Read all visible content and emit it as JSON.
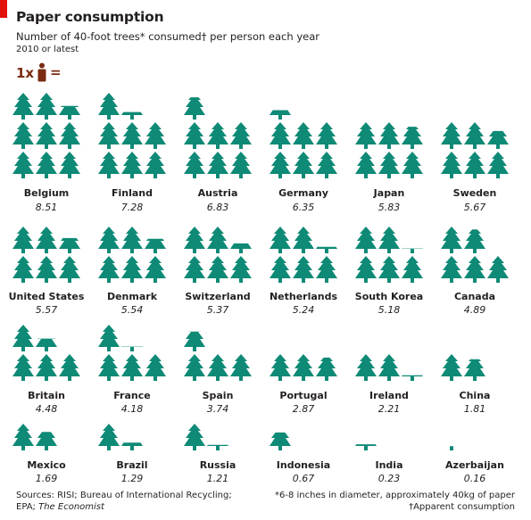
{
  "title": "Paper consumption",
  "subtitle": "Number of 40-foot trees* consumed† per person each year",
  "note": "2010 or latest",
  "key": {
    "multiplier": "1x",
    "equals": "=",
    "icon": "person-icon"
  },
  "colors": {
    "tree": "#0e8a76",
    "key": "#7a2b12",
    "accent": "#e3120b"
  },
  "chart_data": {
    "type": "pictogram",
    "unit": "trees per person",
    "series": [
      {
        "name": "Belgium",
        "value": 8.51,
        "label": "8.51"
      },
      {
        "name": "Finland",
        "value": 7.28,
        "label": "7.28"
      },
      {
        "name": "Austria",
        "value": 6.83,
        "label": "6.83"
      },
      {
        "name": "Germany",
        "value": 6.35,
        "label": "6.35"
      },
      {
        "name": "Japan",
        "value": 5.83,
        "label": "5.83"
      },
      {
        "name": "Sweden",
        "value": 5.67,
        "label": "5.67"
      },
      {
        "name": "United States",
        "value": 5.57,
        "label": "5.57"
      },
      {
        "name": "Denmark",
        "value": 5.54,
        "label": "5.54"
      },
      {
        "name": "Switzerland",
        "value": 5.37,
        "label": "5.37"
      },
      {
        "name": "Netherlands",
        "value": 5.24,
        "label": "5.24"
      },
      {
        "name": "South Korea",
        "value": 5.18,
        "label": "5.18"
      },
      {
        "name": "Canada",
        "value": 4.89,
        "label": "4.89"
      },
      {
        "name": "Britain",
        "value": 4.48,
        "label": "4.48"
      },
      {
        "name": "France",
        "value": 4.18,
        "label": "4.18"
      },
      {
        "name": "Spain",
        "value": 3.74,
        "label": "3.74"
      },
      {
        "name": "Portugal",
        "value": 2.87,
        "label": "2.87"
      },
      {
        "name": "Ireland",
        "value": 2.21,
        "label": "2.21"
      },
      {
        "name": "China",
        "value": 1.81,
        "label": "1.81"
      },
      {
        "name": "Mexico",
        "value": 1.69,
        "label": "1.69"
      },
      {
        "name": "Brazil",
        "value": 1.29,
        "label": "1.29"
      },
      {
        "name": "Russia",
        "value": 1.21,
        "label": "1.21"
      },
      {
        "name": "Indonesia",
        "value": 0.67,
        "label": "0.67"
      },
      {
        "name": "India",
        "value": 0.23,
        "label": "0.23"
      },
      {
        "name": "Azerbaijan",
        "value": 0.16,
        "label": "0.16"
      }
    ]
  },
  "sources": {
    "line1": "Sources: RISI; Bureau of International Recycling;",
    "line2_prefix": "EPA; ",
    "line2_italic": "The Economist"
  },
  "footnotes": {
    "line1": "*6-8 inches in diameter, approximately 40kg of paper",
    "line2": "†Apparent consumption"
  }
}
